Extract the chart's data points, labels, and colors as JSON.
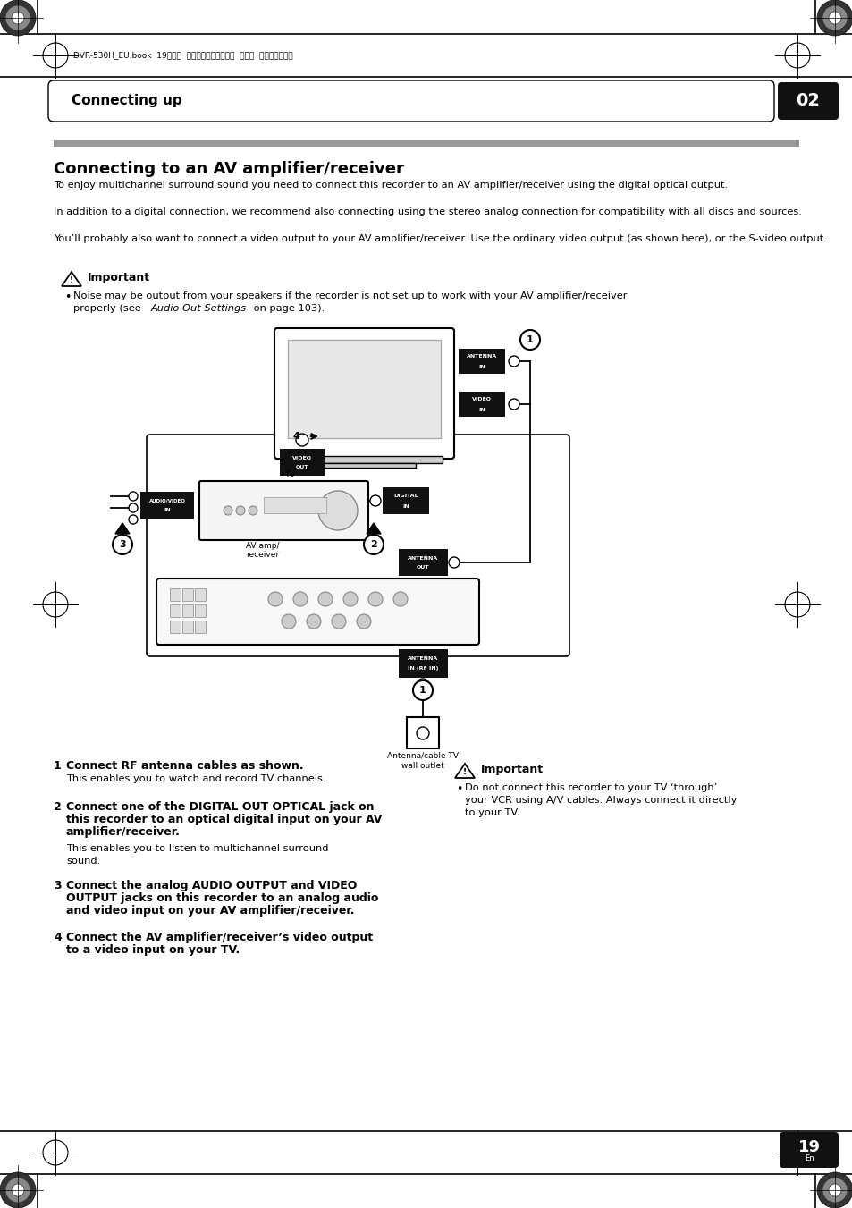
{
  "page_bg": "#ffffff",
  "header_text": "Connecting up",
  "header_num": "02",
  "file_info": "DVR-530H_EU.book  19ページ  ２００５年２月１４日  月曜日  午後２時２０分",
  "section_title": "Connecting to an AV amplifier/receiver",
  "para1": "To enjoy multichannel surround sound you need to connect this recorder to an AV amplifier/receiver using the digital optical output.",
  "para2": "In addition to a digital connection, we recommend also connecting using the stereo analog connection for compatibility with all discs and sources.",
  "para3": "You’ll probably also want to connect a video output to your AV amplifier/receiver. Use the ordinary video output (as shown here), or the S-video output.",
  "important1_bullet_line1": "Noise may be output from your speakers if the recorder is not set up to work with your AV amplifier/receiver",
  "important1_bullet_line2": "properly (see ",
  "important1_bullet_italic": "Audio Out Settings",
  "important1_bullet_line3": " on page 103).",
  "step1_bold": "Connect RF antenna cables as shown.",
  "step1_body": "This enables you to watch and record TV channels.",
  "step2_bold": "Connect one of the DIGITAL OUT OPTICAL jack on this recorder to an optical digital input on your AV amplifier/receiver.",
  "step2_body": "This enables you to listen to multichannel surround sound.",
  "step3_bold": "Connect the analog AUDIO OUTPUT and VIDEO OUTPUT jacks on this recorder to an analog audio and video input on your AV amplifier/receiver.",
  "step4_bold": "Connect the AV amplifier/receiver’s video output to a video input on your TV.",
  "important2_bullet": "Do not connect this recorder to your TV ‘through’ your VCR using A/V cables. Always connect it directly to your TV.",
  "page_num": "19",
  "page_num_sub": "En"
}
